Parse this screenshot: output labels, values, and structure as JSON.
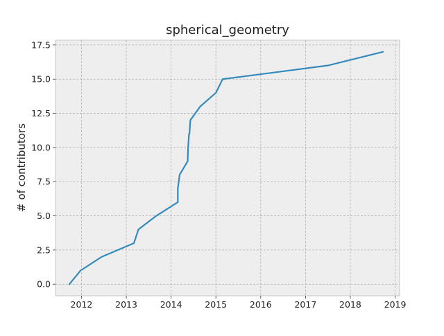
{
  "chart_data": {
    "type": "line",
    "title": "spherical_geometry",
    "xlabel": "",
    "ylabel": "# of contributors",
    "xlim": [
      2011.42,
      2019.1
    ],
    "ylim": [
      -0.85,
      17.85
    ],
    "xticks": [
      2012,
      2013,
      2014,
      2015,
      2016,
      2017,
      2018,
      2019
    ],
    "xtick_labels": [
      "2012",
      "2013",
      "2014",
      "2015",
      "2016",
      "2017",
      "2018",
      "2019"
    ],
    "yticks": [
      0,
      2.5,
      5,
      7.5,
      10,
      12.5,
      15,
      17.5
    ],
    "ytick_labels": [
      "0.0",
      "2.5",
      "5.0",
      "7.5",
      "10.0",
      "12.5",
      "15.0",
      "17.5"
    ],
    "grid": true,
    "series": [
      {
        "color": "#348abd",
        "x": [
          2011.73,
          2011.98,
          2012.45,
          2013.17,
          2013.27,
          2013.67,
          2014.15,
          2014.15,
          2014.19,
          2014.37,
          2014.38,
          2014.4,
          2014.41,
          2014.41,
          2014.43,
          2014.65,
          2015.0,
          2015.15,
          2017.5,
          2018.73
        ],
        "y": [
          0,
          1,
          2,
          3,
          4,
          5,
          6,
          7,
          8,
          9,
          10,
          11,
          11,
          11,
          12,
          13,
          14,
          15,
          16,
          17
        ]
      }
    ]
  }
}
